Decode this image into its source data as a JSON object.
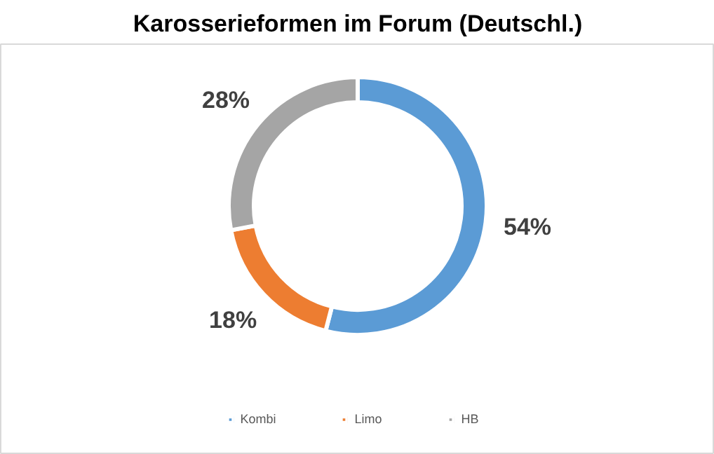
{
  "chart_data": {
    "type": "donut",
    "title": "Karosserieformen im Forum (Deutschl.)",
    "categories": [
      "Kombi",
      "Limo",
      "HB"
    ],
    "values": [
      54,
      18,
      28
    ],
    "colors": [
      "#5b9bd5",
      "#ed7d31",
      "#a5a5a5"
    ],
    "value_labels": [
      "54%",
      "18%",
      "28%"
    ],
    "legend": "bottom"
  }
}
